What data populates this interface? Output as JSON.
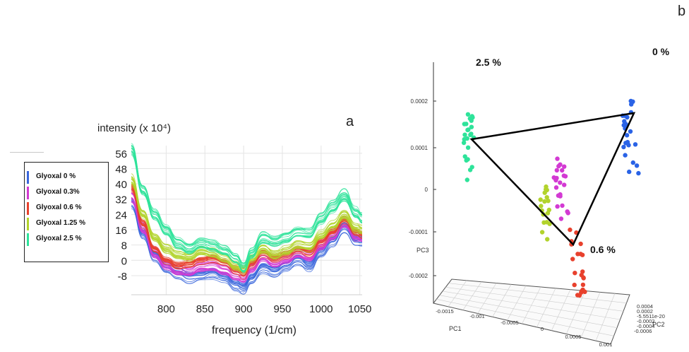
{
  "chart_data": [
    {
      "panel": "a",
      "type": "line",
      "ylabel": "intensity (x 10⁴)",
      "xlabel": "frequency (1/cm)",
      "x_ticks": [
        800,
        850,
        900,
        950,
        1000,
        1050
      ],
      "y_ticks": [
        -8,
        0,
        8,
        16,
        24,
        32,
        40,
        48,
        56
      ],
      "xlim": [
        755,
        1053
      ],
      "ylim": [
        -18,
        60
      ],
      "grid": true,
      "legend_position": "left",
      "x": [
        755,
        770,
        785,
        800,
        815,
        830,
        845,
        860,
        875,
        890,
        900,
        910,
        925,
        940,
        955,
        970,
        985,
        1000,
        1015,
        1030,
        1045,
        1053
      ],
      "series": [
        {
          "name": "Glyoxal 0 %",
          "color": "#3a66dc",
          "replicates": 18,
          "values": [
            30,
            14,
            2,
            -4,
            -7,
            -9,
            -8,
            -7,
            -9,
            -13,
            -15,
            -10,
            -4,
            -6,
            -3,
            0,
            -3,
            4,
            10,
            17,
            10,
            10
          ]
        },
        {
          "name": "Glyoxal 0.3%",
          "color": "#d33ad3",
          "replicates": 18,
          "values": [
            34,
            17,
            4,
            -2,
            -5,
            -6,
            -3,
            -3,
            -5,
            -8,
            -9,
            -4,
            2,
            -1,
            1,
            4,
            2,
            8,
            13,
            20,
            13,
            12
          ]
        },
        {
          "name": "Glyoxal 0.6 %",
          "color": "#e8412d",
          "replicates": 18,
          "values": [
            38,
            19,
            6,
            0,
            -3,
            -2,
            0,
            1,
            -1,
            -5,
            -7,
            -2,
            4,
            1,
            3,
            6,
            4,
            10,
            15,
            21,
            15,
            13
          ]
        },
        {
          "name": "Glyoxal 1.25 %",
          "color": "#b2d32c",
          "replicates": 18,
          "values": [
            42,
            24,
            12,
            6,
            3,
            2,
            5,
            4,
            1,
            -3,
            -5,
            1,
            6,
            3,
            5,
            8,
            7,
            13,
            18,
            24,
            17,
            16
          ]
        },
        {
          "name": "Glyoxal 2.5 %",
          "color": "#2ee39a",
          "replicates": 18,
          "values": [
            58,
            37,
            24,
            16,
            9,
            6,
            9,
            8,
            5,
            1,
            -4,
            4,
            12,
            10,
            12,
            15,
            14,
            22,
            28,
            34,
            25,
            22
          ]
        }
      ]
    },
    {
      "panel": "b",
      "type": "scatter",
      "subtype": "3d-pca",
      "axes": {
        "x": "PC1",
        "y": "PC2",
        "z": "PC3"
      },
      "pc3_ticks": [
        "0.0002",
        "0.0001",
        "0",
        "-0.0001",
        "-0.0002"
      ],
      "pc1_ticks": [
        "-0.0015",
        "-0.001",
        "-0.0005",
        "0",
        "0.0005",
        "0.001"
      ],
      "pc2_ticks": [
        "0.0004",
        "0.0002",
        "-5.5511e-20",
        "-0.0002",
        "-0.0004",
        "-0.0006"
      ],
      "groups": [
        {
          "name": "2.5 %",
          "color": "#2ee39a",
          "n": 24
        },
        {
          "name": "1.25 %",
          "color": "#b2d32c",
          "n": 18
        },
        {
          "name": "0.3 %",
          "color": "#d33ad3",
          "n": 22
        },
        {
          "name": "0.6 %",
          "color": "#e8412d",
          "n": 22
        },
        {
          "name": "0 %",
          "color": "#2a63e6",
          "n": 24
        }
      ],
      "labels": [
        "2.5 %",
        "0 %",
        "0.6 %"
      ]
    }
  ],
  "panel_letters": {
    "a": "a",
    "b": "b"
  }
}
